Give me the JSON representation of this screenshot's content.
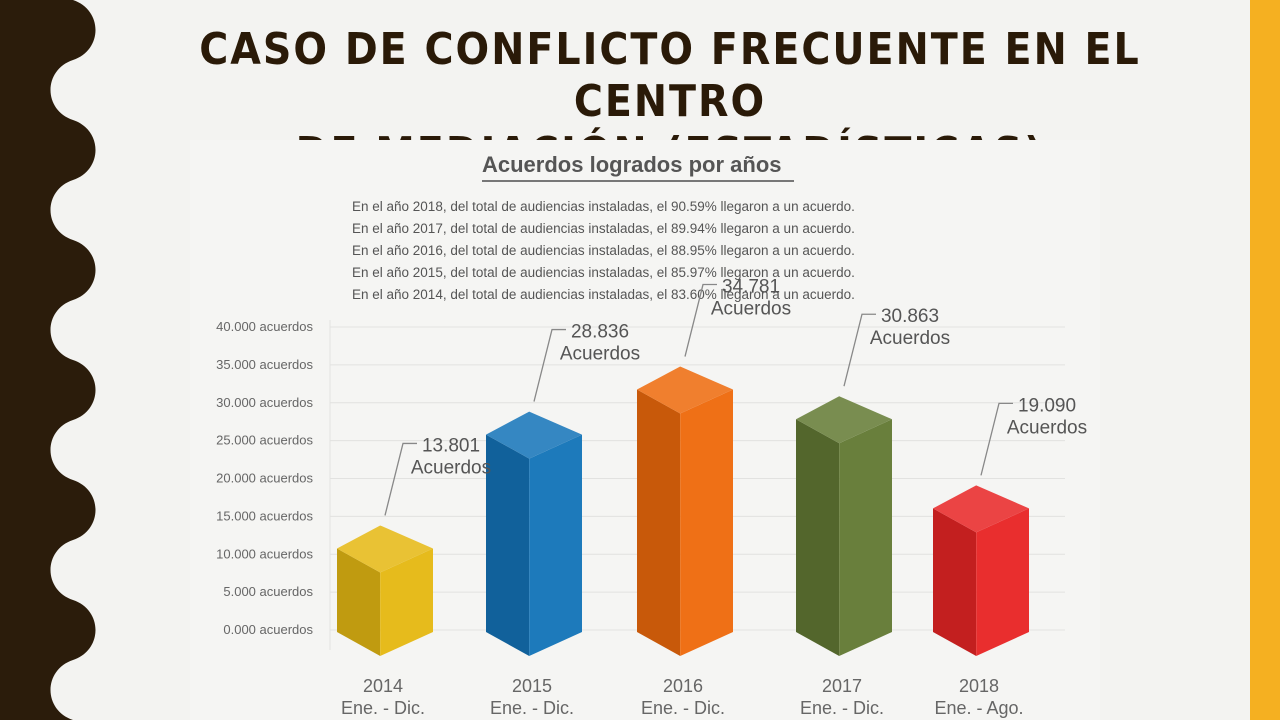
{
  "slide": {
    "title_lines": [
      "Caso de conflicto frecuente en el Centro",
      "de mediación (estadísticas)"
    ],
    "colors": {
      "left_band": "#2b1c0b",
      "right_band": "#f5b021",
      "background": "#f3f3f1"
    }
  },
  "chart_data": {
    "type": "bar",
    "title": "Acuerdos logrados por años",
    "notes": [
      "En el año 2018, del total de audiencias instaladas, el 90.59% llegaron a un acuerdo.",
      "En el año 2017, del total de audiencias instaladas, el 89.94% llegaron a un acuerdo.",
      "En el año 2016, del total de audiencias instaladas, el 88.95% llegaron a un acuerdo.",
      "En el año 2015, del total de audiencias instaladas, el 85.97% llegaron a un acuerdo.",
      "En el año 2014, del total de audiencias instaladas, el 83.60% llegaron a un acuerdo."
    ],
    "y_ticks": [
      "0.000 acuerdos",
      "5.000 acuerdos",
      "10.000 acuerdos",
      "15.000 acuerdos",
      "20.000 acuerdos",
      "25.000 acuerdos",
      "30.000 acuerdos",
      "35.000 acuerdos",
      "40.000 acuerdos"
    ],
    "ylim": [
      0,
      40000
    ],
    "grid": true,
    "bars": [
      {
        "year": "2014",
        "period": "Ene. - Dic.",
        "value": 13801,
        "value_text": "13.801",
        "unit": "Acuerdos",
        "color": "#e5b813"
      },
      {
        "year": "2015",
        "period": "Ene. - Dic.",
        "value": 28836,
        "value_text": "28.836",
        "unit": "Acuerdos",
        "color": "#1474b8"
      },
      {
        "year": "2016",
        "period": "Ene. - Dic.",
        "value": 34781,
        "value_text": "34.781",
        "unit": "Acuerdos",
        "color": "#ee6a0c"
      },
      {
        "year": "2017",
        "period": "Ene. - Dic.",
        "value": 30863,
        "value_text": "30.863",
        "unit": "Acuerdos",
        "color": "#637a34"
      },
      {
        "year": "2018",
        "period": "Ene. - Ago.",
        "value": 19090,
        "value_text": "19.090",
        "unit": "Acuerdos",
        "color": "#e82525"
      }
    ]
  }
}
